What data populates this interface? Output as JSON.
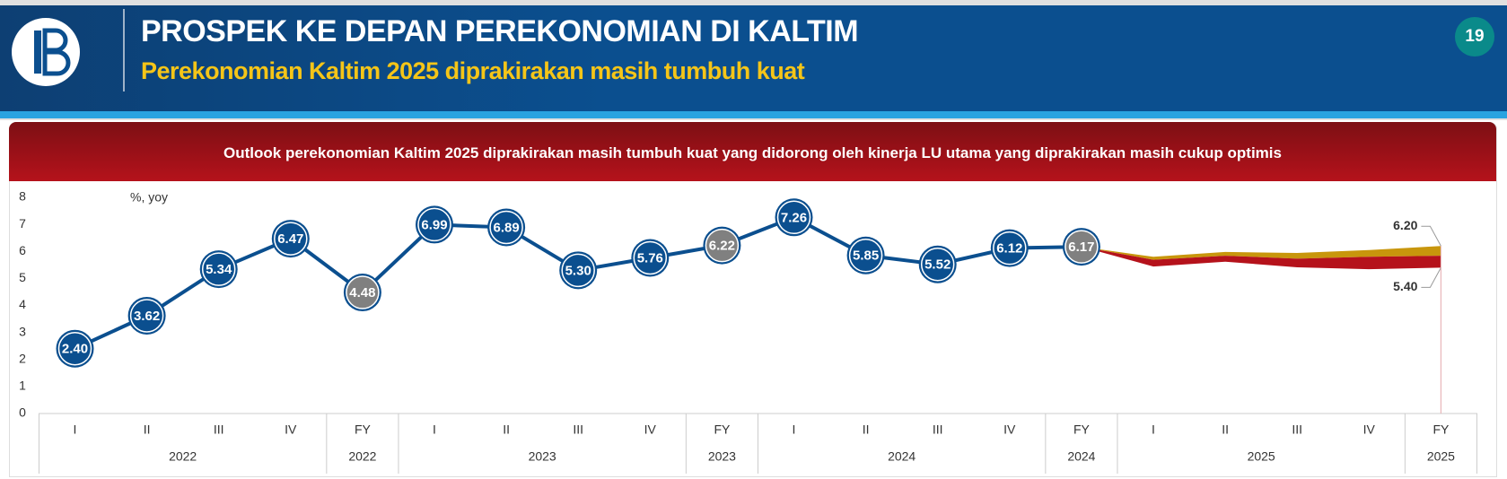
{
  "header": {
    "title": "PROSPEK KE DEPAN PEREKONOMIAN DI KALTIM",
    "subtitle": "Perekonomian Kaltim 2025 diprakirakan masih tumbuh kuat",
    "page_number": "19"
  },
  "banner": "Outlook perekonomian Kaltim 2025 diprakirakan masih tumbuh kuat yang didorong oleh kinerja LU utama yang diprakirakan masih cukup optimis",
  "chart_data": {
    "type": "line",
    "y_axis_label": "%, yoy",
    "categories": [
      "I",
      "II",
      "III",
      "IV",
      "FY",
      "I",
      "II",
      "III",
      "IV",
      "FY",
      "I",
      "II",
      "III",
      "IV",
      "FY",
      "I",
      "II",
      "III",
      "IV",
      "FY"
    ],
    "group_labels": [
      "2022",
      null,
      null,
      null,
      "2022",
      "2023",
      null,
      null,
      null,
      "2023",
      "2024",
      null,
      null,
      null,
      "2024",
      "2025",
      null,
      null,
      null,
      "2025"
    ],
    "series": [
      {
        "color": "#0b4f8f",
        "values": [
          2.4,
          3.62,
          5.34,
          6.47,
          4.48,
          6.99,
          6.89,
          5.3,
          5.76,
          6.22,
          7.26,
          5.85,
          5.52,
          6.12,
          6.17,
          null,
          null,
          null,
          null,
          null
        ],
        "value_labels": [
          "2.40",
          "3.62",
          "5.34",
          "6.47",
          "4.48",
          "6.99",
          "6.89",
          "5.30",
          "5.76",
          "6.22",
          "7.26",
          "5.85",
          "5.52",
          "6.12",
          "6.17",
          null,
          null,
          null,
          null,
          null
        ],
        "point_colors": [
          "#0b4f8f",
          "#0b4f8f",
          "#0b4f8f",
          "#0b4f8f",
          "#808080",
          "#0b4f8f",
          "#0b4f8f",
          "#0b4f8f",
          "#0b4f8f",
          "#808080",
          "#0b4f8f",
          "#0b4f8f",
          "#0b4f8f",
          "#0b4f8f",
          "#808080",
          null,
          null,
          null,
          null,
          null
        ]
      }
    ],
    "forecast": {
      "colors": [
        "#c8960c",
        "#b5121b"
      ],
      "upper": {
        "values": [
          null,
          null,
          null,
          null,
          null,
          null,
          null,
          null,
          null,
          null,
          null,
          null,
          null,
          null,
          6.17,
          5.8,
          5.98,
          5.94,
          6.05,
          6.2
        ],
        "value_labels": [
          null,
          null,
          null,
          null,
          null,
          null,
          null,
          null,
          null,
          null,
          null,
          null,
          null,
          null,
          null,
          null,
          null,
          null,
          null,
          "6.20"
        ]
      },
      "middle": {
        "values": [
          null,
          null,
          null,
          null,
          null,
          null,
          null,
          null,
          null,
          null,
          null,
          null,
          null,
          null,
          6.17,
          5.69,
          5.84,
          5.73,
          5.8,
          5.84
        ]
      },
      "lower": {
        "values": [
          null,
          null,
          null,
          null,
          null,
          null,
          null,
          null,
          null,
          null,
          null,
          null,
          null,
          null,
          6.17,
          5.44,
          5.62,
          5.41,
          5.34,
          5.4
        ],
        "value_labels": [
          null,
          null,
          null,
          null,
          null,
          null,
          null,
          null,
          null,
          null,
          null,
          null,
          null,
          null,
          null,
          null,
          null,
          null,
          null,
          "5.40"
        ]
      }
    },
    "ylim": [
      0,
      8
    ],
    "yticks": [
      0,
      1,
      2,
      3,
      4,
      5,
      6,
      7,
      8
    ],
    "grid": false
  }
}
